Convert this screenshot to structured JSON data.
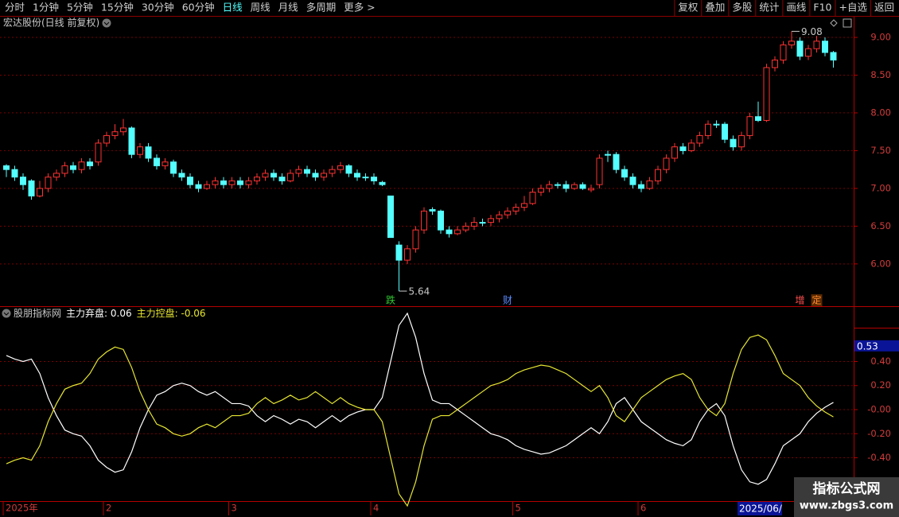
{
  "toolbar": {
    "left": [
      "分时",
      "1分钟",
      "5分钟",
      "15分钟",
      "30分钟",
      "60分钟",
      "日线",
      "周线",
      "月线",
      "多周期",
      "更多 >"
    ],
    "selected": "日线",
    "right": [
      "复权",
      "叠加",
      "多股",
      "统计",
      "画线",
      "F10",
      "+自选",
      "返回"
    ]
  },
  "watermark": {
    "title": "指标公式网",
    "url": "www.zbgs3.com"
  },
  "chart_data": [
    {
      "type": "candlestick",
      "title": "宏达股份(日线 前复权)",
      "up_color": "#ff3232",
      "down_color": "#54ffff",
      "ylim": [
        5.44,
        9.2
      ],
      "yticks": [
        {
          "value": 9,
          "label": "9.00"
        },
        {
          "value": 8.5,
          "label": "8.50"
        },
        {
          "value": 8,
          "label": "8.00"
        },
        {
          "value": 7.5,
          "label": "7.50"
        },
        {
          "value": 7,
          "label": "7.00"
        },
        {
          "value": 6.5,
          "label": "6.50"
        },
        {
          "value": 6,
          "label": "6.00"
        }
      ],
      "grid": true,
      "categories": [
        "2025年",
        null,
        null,
        null,
        null,
        null,
        null,
        null,
        null,
        null,
        null,
        null,
        "2",
        null,
        null,
        null,
        null,
        null,
        null,
        null,
        null,
        null,
        null,
        null,
        null,
        null,
        null,
        "3",
        null,
        null,
        null,
        null,
        null,
        null,
        null,
        null,
        null,
        null,
        null,
        null,
        null,
        null,
        null,
        null,
        "4",
        null,
        null,
        null,
        null,
        null,
        null,
        null,
        null,
        null,
        null,
        null,
        null,
        null,
        null,
        null,
        null,
        "5",
        null,
        null,
        null,
        null,
        null,
        null,
        null,
        null,
        null,
        null,
        null,
        null,
        null,
        null,
        "6",
        null,
        null,
        null,
        null,
        null,
        null,
        null,
        null,
        null,
        null,
        null,
        null,
        null,
        null,
        null,
        null,
        null,
        null,
        null,
        null,
        null,
        null,
        null
      ],
      "ohlc": [
        [
          7.3,
          7.32,
          7.15,
          7.25
        ],
        [
          7.25,
          7.3,
          7.1,
          7.15
        ],
        [
          7.15,
          7.2,
          6.98,
          7.05
        ],
        [
          7.1,
          7.12,
          6.85,
          6.9
        ],
        [
          6.9,
          7.1,
          6.88,
          7.0
        ],
        [
          7.0,
          7.2,
          6.95,
          7.15
        ],
        [
          7.15,
          7.25,
          7.1,
          7.2
        ],
        [
          7.2,
          7.35,
          7.15,
          7.3
        ],
        [
          7.3,
          7.35,
          7.2,
          7.25
        ],
        [
          7.25,
          7.4,
          7.2,
          7.35
        ],
        [
          7.35,
          7.4,
          7.25,
          7.3
        ],
        [
          7.35,
          7.65,
          7.3,
          7.6
        ],
        [
          7.6,
          7.75,
          7.55,
          7.7
        ],
        [
          7.7,
          7.85,
          7.65,
          7.75
        ],
        [
          7.75,
          7.92,
          7.7,
          7.8
        ],
        [
          7.8,
          7.82,
          7.4,
          7.45
        ],
        [
          7.45,
          7.6,
          7.4,
          7.55
        ],
        [
          7.55,
          7.6,
          7.35,
          7.4
        ],
        [
          7.4,
          7.45,
          7.25,
          7.3
        ],
        [
          7.3,
          7.4,
          7.25,
          7.35
        ],
        [
          7.35,
          7.38,
          7.15,
          7.2
        ],
        [
          7.2,
          7.25,
          7.1,
          7.15
        ],
        [
          7.15,
          7.2,
          7.0,
          7.05
        ],
        [
          7.05,
          7.1,
          6.95,
          7.0
        ],
        [
          7.0,
          7.1,
          6.98,
          7.05
        ],
        [
          7.05,
          7.15,
          7.0,
          7.1
        ],
        [
          7.1,
          7.15,
          7.0,
          7.05
        ],
        [
          7.05,
          7.15,
          7.0,
          7.1
        ],
        [
          7.1,
          7.15,
          7.0,
          7.05
        ],
        [
          7.05,
          7.15,
          7.0,
          7.1
        ],
        [
          7.1,
          7.2,
          7.05,
          7.15
        ],
        [
          7.15,
          7.25,
          7.1,
          7.2
        ],
        [
          7.2,
          7.25,
          7.1,
          7.15
        ],
        [
          7.15,
          7.2,
          7.05,
          7.1
        ],
        [
          7.1,
          7.25,
          7.08,
          7.2
        ],
        [
          7.2,
          7.3,
          7.15,
          7.25
        ],
        [
          7.25,
          7.3,
          7.15,
          7.2
        ],
        [
          7.2,
          7.25,
          7.1,
          7.15
        ],
        [
          7.15,
          7.25,
          7.1,
          7.2
        ],
        [
          7.2,
          7.3,
          7.15,
          7.25
        ],
        [
          7.25,
          7.35,
          7.2,
          7.3
        ],
        [
          7.3,
          7.32,
          7.15,
          7.2
        ],
        [
          7.2,
          7.25,
          7.1,
          7.15
        ],
        [
          7.15,
          7.2,
          7.1,
          7.15
        ],
        [
          7.15,
          7.2,
          7.05,
          7.1
        ],
        [
          7.08,
          7.1,
          7.03,
          7.05
        ],
        [
          6.9,
          6.9,
          6.35,
          6.35
        ],
        [
          6.25,
          6.3,
          5.64,
          6.05
        ],
        [
          6.05,
          6.25,
          6.0,
          6.2
        ],
        [
          6.2,
          6.5,
          6.15,
          6.45
        ],
        [
          6.45,
          6.75,
          6.4,
          6.7
        ],
        [
          6.72,
          6.75,
          6.65,
          6.7
        ],
        [
          6.7,
          6.72,
          6.4,
          6.45
        ],
        [
          6.45,
          6.5,
          6.35,
          6.4
        ],
        [
          6.4,
          6.5,
          6.38,
          6.45
        ],
        [
          6.45,
          6.55,
          6.42,
          6.5
        ],
        [
          6.5,
          6.62,
          6.45,
          6.55
        ],
        [
          6.55,
          6.6,
          6.5,
          6.55
        ],
        [
          6.55,
          6.65,
          6.5,
          6.6
        ],
        [
          6.6,
          6.7,
          6.55,
          6.65
        ],
        [
          6.65,
          6.75,
          6.6,
          6.7
        ],
        [
          6.7,
          6.8,
          6.65,
          6.75
        ],
        [
          6.75,
          6.9,
          6.7,
          6.8
        ],
        [
          6.8,
          7.0,
          6.78,
          6.95
        ],
        [
          6.95,
          7.05,
          6.9,
          7.0
        ],
        [
          7.0,
          7.1,
          6.95,
          7.05
        ],
        [
          7.05,
          7.08,
          7.0,
          7.05
        ],
        [
          7.05,
          7.1,
          6.95,
          7.0
        ],
        [
          7.0,
          7.08,
          6.98,
          7.05
        ],
        [
          7.05,
          7.08,
          6.98,
          7.0
        ],
        [
          6.98,
          7.05,
          6.95,
          7.0
        ],
        [
          7.05,
          7.45,
          7.0,
          7.4
        ],
        [
          7.45,
          7.5,
          7.35,
          7.45
        ],
        [
          7.45,
          7.48,
          7.2,
          7.25
        ],
        [
          7.25,
          7.3,
          7.1,
          7.15
        ],
        [
          7.15,
          7.2,
          7.0,
          7.05
        ],
        [
          7.05,
          7.1,
          6.95,
          7.0
        ],
        [
          7.0,
          7.15,
          6.98,
          7.1
        ],
        [
          7.1,
          7.3,
          7.05,
          7.25
        ],
        [
          7.25,
          7.45,
          7.2,
          7.4
        ],
        [
          7.4,
          7.6,
          7.35,
          7.55
        ],
        [
          7.55,
          7.6,
          7.45,
          7.5
        ],
        [
          7.5,
          7.65,
          7.48,
          7.6
        ],
        [
          7.6,
          7.75,
          7.55,
          7.7
        ],
        [
          7.7,
          7.9,
          7.65,
          7.85
        ],
        [
          7.85,
          7.9,
          7.8,
          7.85
        ],
        [
          7.85,
          7.88,
          7.6,
          7.65
        ],
        [
          7.65,
          7.7,
          7.5,
          7.55
        ],
        [
          7.55,
          7.75,
          7.5,
          7.7
        ],
        [
          7.7,
          8.0,
          7.65,
          7.95
        ],
        [
          7.95,
          8.15,
          7.88,
          7.9
        ],
        [
          7.9,
          8.65,
          7.88,
          8.6
        ],
        [
          8.6,
          8.75,
          8.55,
          8.7
        ],
        [
          8.7,
          8.95,
          8.65,
          8.9
        ],
        [
          8.9,
          9.08,
          8.85,
          8.95
        ],
        [
          8.95,
          9.0,
          8.7,
          8.75
        ],
        [
          8.75,
          8.9,
          8.7,
          8.85
        ],
        [
          8.85,
          9.02,
          8.8,
          8.95
        ],
        [
          8.95,
          9.0,
          8.75,
          8.8
        ],
        [
          8.8,
          8.82,
          8.6,
          8.7
        ]
      ],
      "markers": [
        {
          "index": 46,
          "label": "跌",
          "color": "#32c832"
        },
        {
          "index": 60,
          "label": "财",
          "color": "#5a8cff"
        },
        {
          "index": 95,
          "label": "增",
          "color": "#ff5050"
        },
        {
          "index": 97,
          "label": "定",
          "color": "#ff8c32"
        }
      ],
      "low_annotation": {
        "index": 47
      },
      "high_annotation": {
        "index": 94
      }
    },
    {
      "type": "line",
      "title": "股朋指标网",
      "ylim": [
        -0.76,
        0.846
      ],
      "yticks": [
        {
          "value": 0.4,
          "label": "0.40"
        },
        {
          "value": 0.2,
          "label": "0.20"
        },
        {
          "value": 0,
          "label": "-0.00"
        },
        {
          "value": -0.2,
          "label": "-0.20"
        },
        {
          "value": -0.4,
          "label": "-0.40"
        }
      ],
      "grid": true,
      "cursor": {
        "index": 88,
        "date": "2025/06/",
        "value": 0.53
      },
      "series": [
        {
          "name": "主力弃盘",
          "color": "#ffffff",
          "values": [
            0.45,
            0.42,
            0.4,
            0.42,
            0.3,
            0.1,
            -0.05,
            -0.17,
            -0.2,
            -0.22,
            -0.3,
            -0.42,
            -0.48,
            -0.52,
            -0.5,
            -0.35,
            -0.15,
            0.0,
            0.12,
            0.15,
            0.2,
            0.22,
            0.2,
            0.15,
            0.12,
            0.15,
            0.1,
            0.05,
            0.05,
            0.03,
            -0.05,
            -0.1,
            -0.05,
            -0.08,
            -0.12,
            -0.08,
            -0.1,
            -0.15,
            -0.1,
            -0.05,
            -0.1,
            -0.05,
            -0.02,
            0.0,
            0.0,
            0.1,
            0.4,
            0.7,
            0.8,
            0.6,
            0.3,
            0.08,
            0.05,
            0.05,
            0.0,
            -0.05,
            -0.1,
            -0.15,
            -0.2,
            -0.22,
            -0.25,
            -0.3,
            -0.33,
            -0.35,
            -0.37,
            -0.36,
            -0.33,
            -0.3,
            -0.25,
            -0.2,
            -0.15,
            -0.2,
            -0.1,
            0.05,
            0.1,
            0.0,
            -0.1,
            -0.15,
            -0.2,
            -0.25,
            -0.28,
            -0.3,
            -0.25,
            -0.1,
            0.0,
            0.05,
            -0.05,
            -0.3,
            -0.5,
            -0.6,
            -0.62,
            -0.58,
            -0.45,
            -0.3,
            -0.25,
            -0.2,
            -0.1,
            -0.03,
            0.02,
            0.06
          ]
        },
        {
          "name": "主力控盘",
          "color": "#e6e632",
          "values": [
            -0.45,
            -0.42,
            -0.4,
            -0.42,
            -0.3,
            -0.1,
            0.05,
            0.17,
            0.2,
            0.22,
            0.3,
            0.42,
            0.48,
            0.52,
            0.5,
            0.35,
            0.15,
            0.0,
            -0.12,
            -0.15,
            -0.2,
            -0.22,
            -0.2,
            -0.15,
            -0.12,
            -0.15,
            -0.1,
            -0.05,
            -0.05,
            -0.03,
            0.05,
            0.1,
            0.05,
            0.08,
            0.12,
            0.08,
            0.1,
            0.15,
            0.1,
            0.05,
            0.1,
            0.05,
            0.02,
            0.0,
            0.0,
            -0.1,
            -0.4,
            -0.7,
            -0.8,
            -0.6,
            -0.3,
            -0.08,
            -0.05,
            -0.05,
            0.0,
            0.05,
            0.1,
            0.15,
            0.2,
            0.22,
            0.25,
            0.3,
            0.33,
            0.35,
            0.37,
            0.36,
            0.33,
            0.3,
            0.25,
            0.2,
            0.15,
            0.2,
            0.1,
            -0.05,
            -0.1,
            0.0,
            0.1,
            0.15,
            0.2,
            0.25,
            0.28,
            0.3,
            0.25,
            0.1,
            0.0,
            -0.05,
            0.05,
            0.3,
            0.5,
            0.6,
            0.62,
            0.58,
            0.45,
            0.3,
            0.25,
            0.2,
            0.1,
            0.03,
            -0.02,
            -0.06
          ]
        }
      ]
    }
  ]
}
